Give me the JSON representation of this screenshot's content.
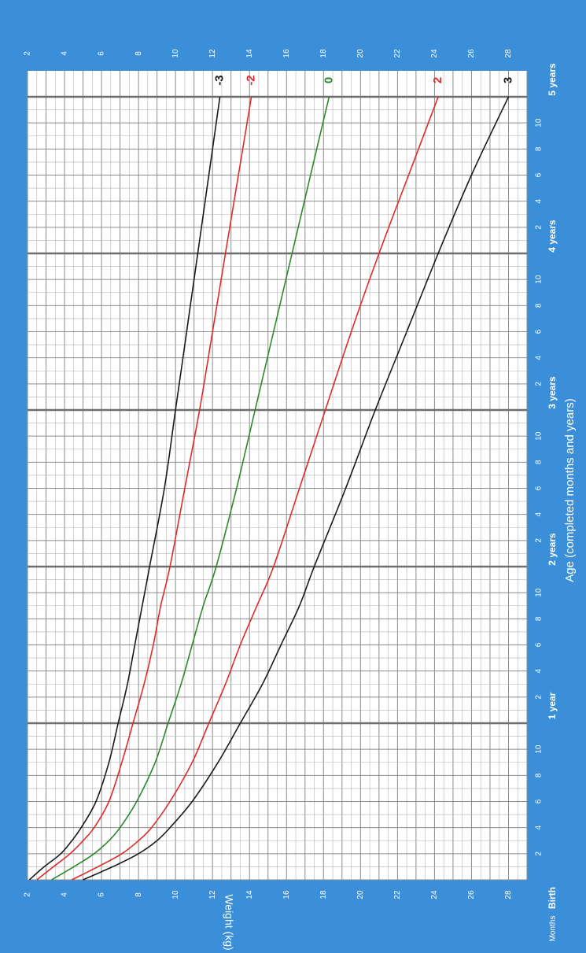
{
  "chart_data": {
    "type": "line",
    "title": "",
    "xlabel": "Age (completed months and years)",
    "ylabel": "Weight (kg)",
    "x_unit_label": "Months",
    "xlim": [
      0,
      60
    ],
    "ylim": [
      2,
      29
    ],
    "y_ticks": [
      2,
      4,
      6,
      8,
      10,
      12,
      14,
      16,
      18,
      20,
      22,
      24,
      26,
      28
    ],
    "month_tick_labels": [
      "2",
      "4",
      "6",
      "8",
      "10"
    ],
    "year_labels": [
      {
        "month": 0,
        "label": "Birth"
      },
      {
        "month": 12,
        "label": "1 year"
      },
      {
        "month": 24,
        "label": "2 years"
      },
      {
        "month": 36,
        "label": "3 years"
      },
      {
        "month": 48,
        "label": "4 years"
      },
      {
        "month": 60,
        "label": "5 years"
      }
    ],
    "x": [
      0,
      1,
      2,
      3,
      4,
      6,
      9,
      12,
      15,
      18,
      21,
      24,
      30,
      36,
      42,
      48,
      54,
      60
    ],
    "series": [
      {
        "name": "3",
        "color": "#1a1a1a",
        "values": [
          5.0,
          6.6,
          8.0,
          9.0,
          9.7,
          10.9,
          12.3,
          13.5,
          14.7,
          15.7,
          16.7,
          17.5,
          19.2,
          20.8,
          22.5,
          24.2,
          26.0,
          28.0
        ]
      },
      {
        "name": "2",
        "color": "#e02a2a",
        "values": [
          4.4,
          5.8,
          7.1,
          8.0,
          8.7,
          9.7,
          10.9,
          11.8,
          12.7,
          13.5,
          14.4,
          15.3,
          16.7,
          18.1,
          19.5,
          21.0,
          22.6,
          24.2
        ]
      },
      {
        "name": "0",
        "color": "#2a8a2a",
        "values": [
          3.3,
          4.5,
          5.6,
          6.4,
          7.0,
          7.9,
          8.9,
          9.6,
          10.3,
          10.9,
          11.5,
          12.2,
          13.3,
          14.3,
          15.3,
          16.3,
          17.3,
          18.3
        ]
      },
      {
        "name": "-2",
        "color": "#e02a2a",
        "values": [
          2.5,
          3.4,
          4.3,
          5.0,
          5.6,
          6.4,
          7.1,
          7.7,
          8.3,
          8.8,
          9.2,
          9.7,
          10.5,
          11.3,
          12.0,
          12.7,
          13.4,
          14.1
        ]
      },
      {
        "name": "-3",
        "color": "#1a1a1a",
        "values": [
          2.1,
          2.9,
          3.8,
          4.4,
          4.9,
          5.7,
          6.4,
          6.9,
          7.4,
          7.8,
          8.2,
          8.6,
          9.4,
          10.0,
          10.6,
          11.2,
          11.8,
          12.4
        ]
      }
    ],
    "grid": true,
    "orientation": "rotated-90"
  },
  "colors": {
    "frame": "#3b8fd9",
    "grid_minor": "#b3b3b3",
    "grid_month": "#8c8c8c",
    "grid_year": "#6e6e6e",
    "axis_text": "#ffffff",
    "year_text": "#ffffff"
  }
}
